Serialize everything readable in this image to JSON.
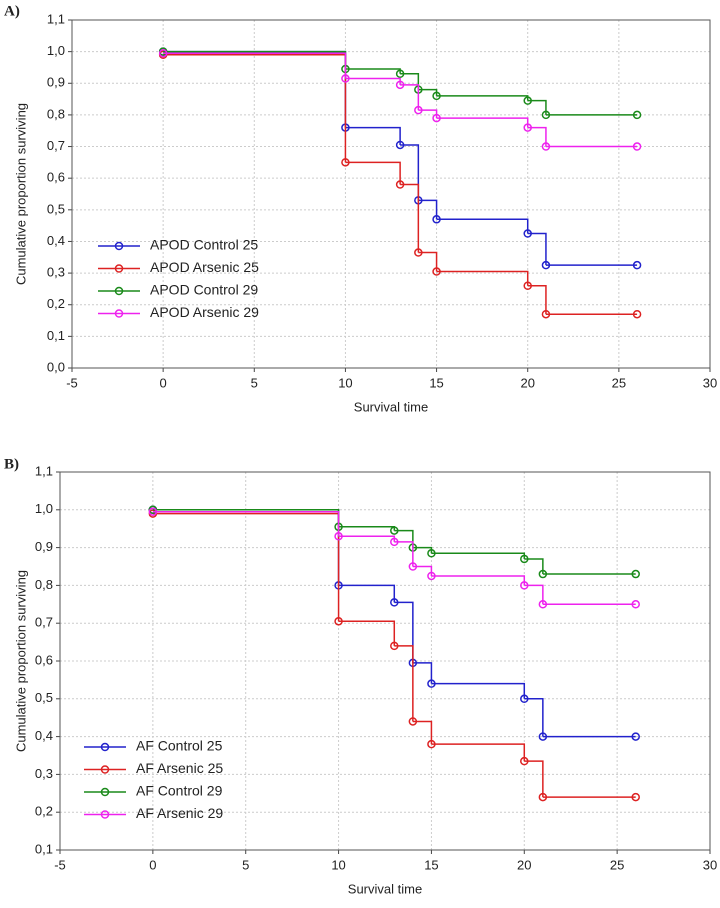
{
  "chart_data": [
    {
      "type": "step",
      "panel_label": "A)",
      "xlabel": "Survival time",
      "ylabel": "Cumulative proportion surviving",
      "x": [
        0,
        10,
        13,
        14,
        15,
        20,
        21,
        26
      ],
      "series": [
        {
          "name": "APOD Control 25",
          "color": "#2222cc",
          "values": [
            1.0,
            0.76,
            0.705,
            0.53,
            0.47,
            0.425,
            0.325,
            0.325
          ]
        },
        {
          "name": "APOD Arsenic 25",
          "color": "#dd2222",
          "values": [
            0.99,
            0.65,
            0.58,
            0.365,
            0.305,
            0.26,
            0.17,
            0.17
          ]
        },
        {
          "name": "APOD Control 29",
          "color": "#1a8a1a",
          "values": [
            1.0,
            0.945,
            0.93,
            0.88,
            0.86,
            0.845,
            0.8,
            0.8
          ]
        },
        {
          "name": "APOD Arsenic 29",
          "color": "#ee22ee",
          "values": [
            0.995,
            0.915,
            0.895,
            0.815,
            0.79,
            0.76,
            0.7,
            0.7
          ]
        }
      ],
      "xlim": [
        -5,
        30
      ],
      "xticks": [
        -5,
        0,
        5,
        10,
        15,
        20,
        25,
        30
      ],
      "ylim": [
        0,
        1.1
      ],
      "yticks": [
        {
          "value": 0,
          "label": "0,0"
        },
        {
          "value": 0.1,
          "label": "0,1"
        },
        {
          "value": 0.2,
          "label": "0,2"
        },
        {
          "value": 0.3,
          "label": "0,3"
        },
        {
          "value": 0.4,
          "label": "0,4"
        },
        {
          "value": 0.5,
          "label": "0,5"
        },
        {
          "value": 0.6,
          "label": "0,6"
        },
        {
          "value": 0.7,
          "label": "0,7"
        },
        {
          "value": 0.8,
          "label": "0,8"
        },
        {
          "value": 0.9,
          "label": "0,9"
        },
        {
          "value": 1.0,
          "label": "1,0"
        },
        {
          "value": 1.1,
          "label": "1,1"
        }
      ],
      "grid": true,
      "legend": "lower left"
    },
    {
      "type": "step",
      "panel_label": "B)",
      "xlabel": "Survival time",
      "ylabel": "Cumulative proportion surviving",
      "x": [
        0,
        10,
        13,
        14,
        15,
        20,
        21,
        26
      ],
      "series": [
        {
          "name": "AF Control 25",
          "color": "#2222cc",
          "values": [
            1.0,
            0.8,
            0.755,
            0.595,
            0.54,
            0.5,
            0.4,
            0.4
          ]
        },
        {
          "name": "AF Arsenic 25",
          "color": "#dd2222",
          "values": [
            0.99,
            0.705,
            0.64,
            0.44,
            0.38,
            0.335,
            0.24,
            0.24
          ]
        },
        {
          "name": "AF Control 29",
          "color": "#1a8a1a",
          "values": [
            1.0,
            0.955,
            0.945,
            0.9,
            0.885,
            0.87,
            0.83,
            0.83
          ]
        },
        {
          "name": "AF Arsenic 29",
          "color": "#ee22ee",
          "values": [
            0.995,
            0.93,
            0.915,
            0.85,
            0.825,
            0.8,
            0.75,
            0.75
          ]
        }
      ],
      "xlim": [
        -5,
        30
      ],
      "xticks": [
        -5,
        0,
        5,
        10,
        15,
        20,
        25,
        30
      ],
      "ylim": [
        0.1,
        1.1
      ],
      "yticks": [
        {
          "value": 0.1,
          "label": "0,1"
        },
        {
          "value": 0.2,
          "label": "0,2"
        },
        {
          "value": 0.3,
          "label": "0,3"
        },
        {
          "value": 0.4,
          "label": "0,4"
        },
        {
          "value": 0.5,
          "label": "0,5"
        },
        {
          "value": 0.6,
          "label": "0,6"
        },
        {
          "value": 0.7,
          "label": "0,7"
        },
        {
          "value": 0.8,
          "label": "0,8"
        },
        {
          "value": 0.9,
          "label": "0,9"
        },
        {
          "value": 1.0,
          "label": "1,0"
        },
        {
          "value": 1.1,
          "label": "1,1"
        }
      ],
      "grid": true,
      "legend": "lower left"
    }
  ]
}
